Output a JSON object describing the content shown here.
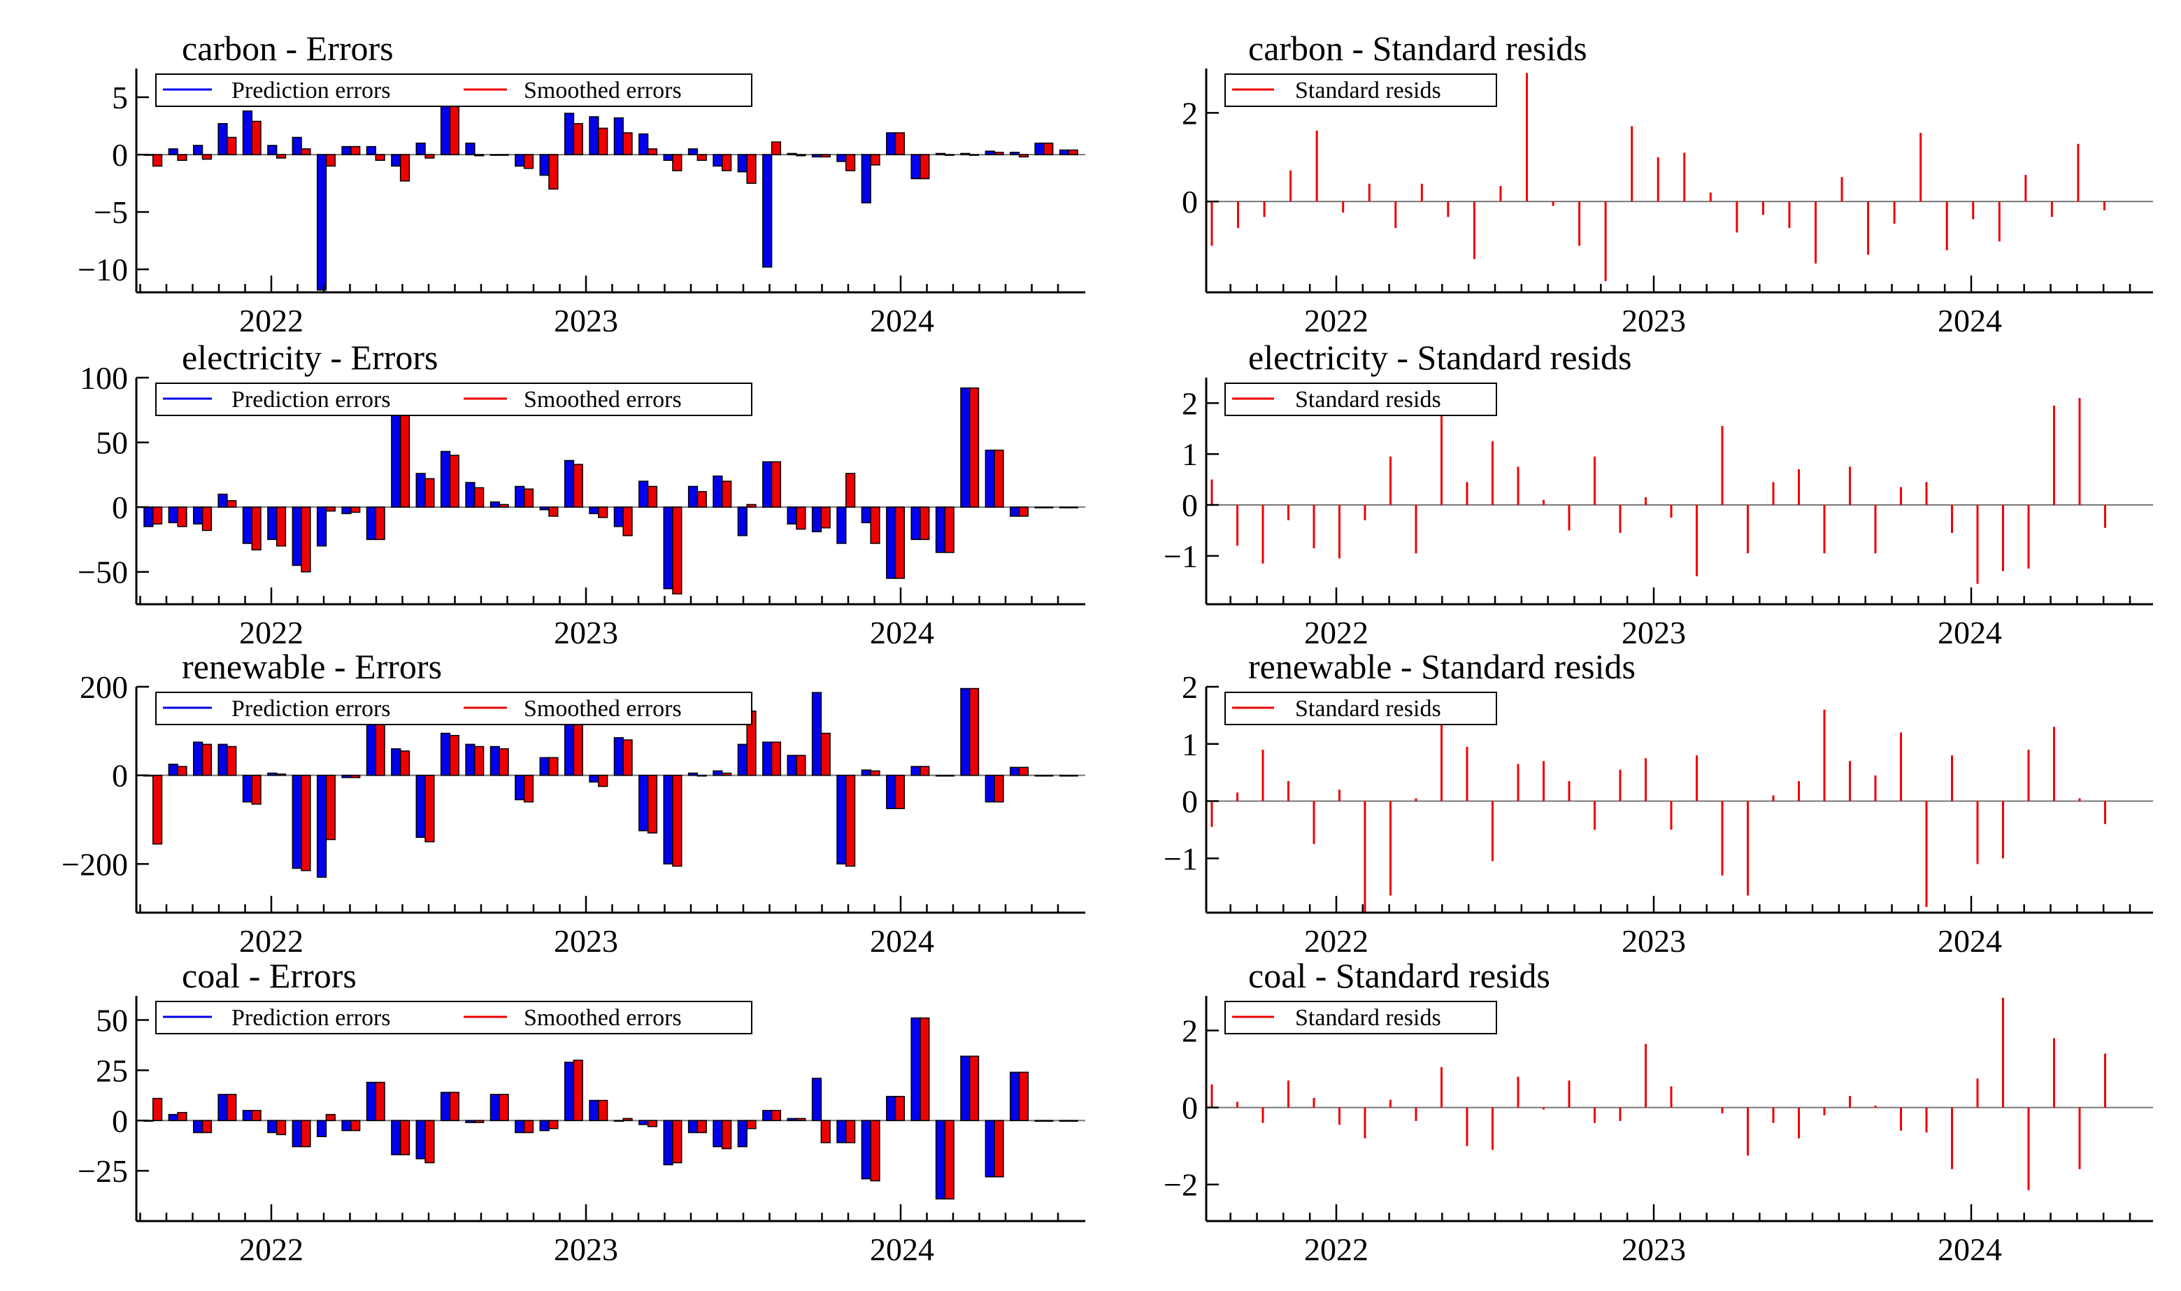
{
  "chart_data": [
    {
      "type": "bar",
      "title": "carbon - Errors",
      "x_ticks": [
        "2022",
        "2023",
        "2024"
      ],
      "y_ticks": [
        5,
        0,
        -5,
        -10
      ],
      "y_tick_labels": [
        "5",
        "0",
        "−5",
        "−10"
      ],
      "ylim": [
        -12,
        7.5
      ],
      "legend": [
        "Prediction errors",
        "Smoothed errors"
      ],
      "colors": {
        "prediction": "#0000ee",
        "smoothed": "#ee0000"
      },
      "series": [
        {
          "name": "Prediction errors",
          "values": [
            0,
            0.5,
            0.8,
            2.7,
            3.8,
            0.8,
            1.5,
            -11.8,
            0.7,
            0.7,
            -1.0,
            1.0,
            5.8,
            1.0,
            0,
            -1.0,
            -1.8,
            3.6,
            3.3,
            3.2,
            1.8,
            -0.5,
            0.5,
            -1.0,
            -1.5,
            -9.8,
            0.1,
            -0.2,
            -0.6,
            -4.2,
            1.9,
            -2.1,
            0.1,
            0.1,
            0.3,
            0.2,
            1.0,
            0.4
          ]
        },
        {
          "name": "Smoothed errors",
          "values": [
            -1.0,
            -0.5,
            -0.4,
            1.5,
            2.9,
            -0.3,
            0.5,
            -1.0,
            0.7,
            -0.5,
            -2.3,
            -0.3,
            4.7,
            -0.1,
            0,
            -1.2,
            -3.0,
            2.7,
            2.3,
            1.9,
            0.5,
            -1.4,
            -0.5,
            -1.4,
            -2.5,
            1.1,
            -0.1,
            -0.2,
            -1.4,
            -0.9,
            1.9,
            -2.1,
            0,
            0,
            0.2,
            -0.2,
            1.0,
            0.4
          ]
        }
      ]
    },
    {
      "type": "bar",
      "title": "electricity - Errors",
      "x_ticks": [
        "2022",
        "2023",
        "2024"
      ],
      "y_ticks": [
        100,
        50,
        0,
        -50
      ],
      "y_tick_labels": [
        "100",
        "50",
        "0",
        "−50"
      ],
      "ylim": [
        -75,
        100
      ],
      "legend": [
        "Prediction errors",
        "Smoothed errors"
      ],
      "colors": {
        "prediction": "#0000ee",
        "smoothed": "#ee0000"
      },
      "series": [
        {
          "name": "Prediction errors",
          "values": [
            -15,
            -12,
            -13,
            10,
            -28,
            -25,
            -45,
            -30,
            -5,
            -25,
            93,
            26,
            43,
            19,
            4,
            16,
            -2,
            36,
            -5,
            -15,
            20,
            -63,
            16,
            24,
            -22,
            35,
            -13,
            -19,
            -28,
            -12,
            -55,
            -25,
            -35,
            92,
            44,
            -7,
            0,
            0
          ]
        },
        {
          "name": "Smoothed errors",
          "values": [
            -13,
            -15,
            -18,
            5,
            -33,
            -30,
            -50,
            -3,
            -4,
            -25,
            90,
            22,
            40,
            15,
            2,
            14,
            -7,
            33,
            -8,
            -22,
            16,
            -67,
            12,
            20,
            2,
            35,
            -17,
            -16,
            26,
            -28,
            -55,
            -25,
            -35,
            92,
            44,
            -7,
            0,
            0
          ]
        }
      ]
    },
    {
      "type": "bar",
      "title": "renewable - Errors",
      "x_ticks": [
        "2022",
        "2023",
        "2024"
      ],
      "y_ticks": [
        200,
        0,
        -200
      ],
      "y_tick_labels": [
        "200",
        "0",
        "−200"
      ],
      "ylim": [
        -310,
        200
      ],
      "legend": [
        "Prediction errors",
        "Smoothed errors"
      ],
      "colors": {
        "prediction": "#0000ee",
        "smoothed": "#ee0000"
      },
      "series": [
        {
          "name": "Prediction errors",
          "values": [
            0,
            25,
            75,
            70,
            -60,
            5,
            -210,
            -230,
            -5,
            178,
            60,
            -140,
            95,
            70,
            65,
            -55,
            40,
            150,
            -15,
            85,
            -125,
            -200,
            5,
            10,
            70,
            75,
            45,
            187,
            -200,
            12,
            -75,
            20,
            0,
            196,
            -60,
            18,
            0,
            0
          ]
        },
        {
          "name": "Smoothed errors",
          "values": [
            -155,
            20,
            70,
            65,
            -65,
            3,
            -215,
            -145,
            -5,
            175,
            55,
            -150,
            90,
            65,
            60,
            -60,
            40,
            135,
            -25,
            80,
            -130,
            -205,
            0,
            5,
            145,
            75,
            45,
            95,
            -205,
            10,
            -75,
            20,
            0,
            196,
            -60,
            18,
            0,
            0
          ]
        }
      ]
    },
    {
      "type": "bar",
      "title": "coal - Errors",
      "x_ticks": [
        "2022",
        "2023",
        "2024"
      ],
      "y_ticks": [
        50,
        25,
        0,
        -25
      ],
      "y_tick_labels": [
        "50",
        "25",
        "0",
        "−25"
      ],
      "ylim": [
        -50,
        62
      ],
      "legend": [
        "Prediction errors",
        "Smoothed errors"
      ],
      "colors": {
        "prediction": "#0000ee",
        "smoothed": "#ee0000"
      },
      "series": [
        {
          "name": "Prediction errors",
          "values": [
            0,
            3,
            -6,
            13,
            5,
            -6,
            -13,
            -8,
            -5,
            19,
            -17,
            -19,
            14,
            -1,
            13,
            -6,
            -5,
            29,
            10,
            0,
            -2,
            -22,
            -6,
            -13,
            -13,
            5,
            1,
            21,
            -11,
            -29,
            12,
            51,
            -39,
            32,
            -28,
            24,
            0,
            0
          ]
        },
        {
          "name": "Smoothed errors",
          "values": [
            11,
            4,
            -6,
            13,
            5,
            -7,
            -13,
            3,
            -5,
            19,
            -17,
            -21,
            14,
            -1,
            13,
            -6,
            -4,
            30,
            10,
            1,
            -3,
            -21,
            -6,
            -14,
            -4,
            5,
            1,
            -11,
            -11,
            -30,
            12,
            51,
            -39,
            32,
            -28,
            24,
            0,
            0
          ]
        }
      ]
    },
    {
      "type": "bar",
      "title": "carbon - Standard resids",
      "x_ticks": [
        "2022",
        "2023",
        "2024"
      ],
      "y_ticks": [
        2,
        0
      ],
      "y_tick_labels": [
        "2",
        "0"
      ],
      "ylim": [
        -2.05,
        3.0
      ],
      "legend": [
        "Standard resids"
      ],
      "colors": {
        "resid": "#ee0000"
      },
      "values": [
        -1.0,
        -0.6,
        -0.35,
        0.7,
        1.6,
        -0.25,
        0.4,
        -0.6,
        0.4,
        -0.35,
        -1.3,
        0.35,
        2.9,
        -0.1,
        -1.0,
        -1.8,
        1.7,
        1.0,
        1.1,
        0.2,
        -0.7,
        -0.3,
        -0.6,
        -1.4,
        0.55,
        -1.2,
        -0.5,
        1.55,
        -1.1,
        -0.4,
        -0.9,
        0.6,
        -0.35,
        1.3,
        -0.2
      ]
    },
    {
      "type": "bar",
      "title": "electricity - Standard resids",
      "x_ticks": [
        "2022",
        "2023",
        "2024"
      ],
      "y_ticks": [
        2,
        1,
        0,
        -1
      ],
      "y_tick_labels": [
        "2",
        "1",
        "0",
        "−1"
      ],
      "ylim": [
        -1.95,
        2.5
      ],
      "legend": [
        "Standard resids"
      ],
      "colors": {
        "resid": "#ee0000"
      },
      "values": [
        0.5,
        -0.8,
        -1.15,
        -0.3,
        -0.85,
        -1.05,
        -0.3,
        0.95,
        -0.95,
        1.95,
        0.45,
        1.25,
        0.75,
        0.1,
        -0.5,
        0.95,
        -0.55,
        0.15,
        -0.25,
        -1.4,
        1.55,
        -0.95,
        0.45,
        0.7,
        -0.95,
        0.75,
        -0.95,
        0.35,
        0.45,
        -0.55,
        -1.55,
        -1.3,
        -1.25,
        1.95,
        2.1,
        -0.45
      ]
    },
    {
      "type": "bar",
      "title": "renewable - Standard resids",
      "x_ticks": [
        "2022",
        "2023",
        "2024"
      ],
      "y_ticks": [
        2,
        1,
        0,
        -1
      ],
      "y_tick_labels": [
        "2",
        "1",
        "0",
        "−1"
      ],
      "ylim": [
        -1.95,
        2.0
      ],
      "legend": [
        "Standard resids"
      ],
      "colors": {
        "resid": "#ee0000"
      },
      "values": [
        -0.45,
        0.15,
        0.9,
        0.35,
        -0.75,
        0.2,
        -1.95,
        -1.65,
        0.05,
        1.4,
        0.95,
        -1.05,
        0.65,
        0.7,
        0.35,
        -0.5,
        0.55,
        0.75,
        -0.5,
        0.8,
        -1.3,
        -1.65,
        0.1,
        0.35,
        1.6,
        0.7,
        0.45,
        1.2,
        -1.85,
        0.8,
        -1.1,
        -1.0,
        0.9,
        1.3,
        0.05,
        -0.4
      ]
    },
    {
      "type": "bar",
      "title": "coal - Standard resids",
      "x_ticks": [
        "2022",
        "2023",
        "2024"
      ],
      "y_ticks": [
        2,
        0,
        -2
      ],
      "y_tick_labels": [
        "2",
        "0",
        "−2"
      ],
      "ylim": [
        -2.95,
        2.9
      ],
      "legend": [
        "Standard resids"
      ],
      "colors": {
        "resid": "#ee0000"
      },
      "values": [
        0.6,
        0.15,
        -0.4,
        0.7,
        0.25,
        -0.45,
        -0.8,
        0.2,
        -0.35,
        1.05,
        -1.0,
        -1.1,
        0.8,
        -0.05,
        0.7,
        -0.4,
        -0.35,
        1.65,
        0.55,
        0.0,
        -0.15,
        -1.25,
        -0.4,
        -0.8,
        -0.2,
        0.3,
        0.05,
        -0.6,
        -0.65,
        -1.6,
        0.75,
        2.85,
        -2.15,
        1.8,
        -1.6,
        1.4
      ]
    }
  ]
}
